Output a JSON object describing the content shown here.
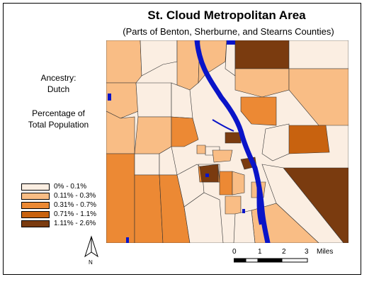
{
  "title": "St. Cloud Metropolitan Area",
  "subtitle": "(Parts of Benton, Sherburne, and Stearns Counties)",
  "ancestry_label": "Ancestry:",
  "ancestry_value": "Dutch",
  "measure_line1": "Percentage of",
  "measure_line2": "Total Population",
  "legend": [
    {
      "label": "0% - 0.1%",
      "color": "#fbeee2"
    },
    {
      "label": "0.11% - 0.3%",
      "color": "#f9bd85"
    },
    {
      "label": "0.31% - 0.7%",
      "color": "#ec8934"
    },
    {
      "label": "0.71% - 1.1%",
      "color": "#c8620f"
    },
    {
      "label": "1.11% - 2.6%",
      "color": "#7a3b0f"
    }
  ],
  "water_color": "#0a14c8",
  "scale": {
    "ticks": [
      "0",
      "1",
      "2",
      "3"
    ],
    "unit": "Miles"
  },
  "north_label": "N"
}
